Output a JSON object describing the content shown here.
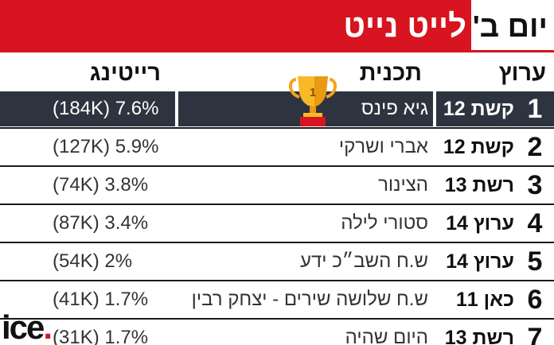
{
  "header": {
    "title": "לייט נייט",
    "day": "יום ב'"
  },
  "columns": {
    "channel": "ערוץ",
    "program": "תכנית",
    "rating": "רייטינג"
  },
  "rows": [
    {
      "rank": "1",
      "channel": "קשת 12",
      "program": "גיא פינס",
      "rating": "(184K) 7.6%"
    },
    {
      "rank": "2",
      "channel": "קשת 12",
      "program": "אברי ושרקי",
      "rating": "(127K) 5.9%"
    },
    {
      "rank": "3",
      "channel": "רשת 13",
      "program": "הצינור",
      "rating": "(74K) 3.8%"
    },
    {
      "rank": "4",
      "channel": "ערוץ 14",
      "program": "סטורי לילה",
      "rating": "(87K) 3.4%"
    },
    {
      "rank": "5",
      "channel": "ערוץ 14",
      "program": "ש.ח השב״כ ידע",
      "rating": "(54K) 2%"
    },
    {
      "rank": "6",
      "channel": "כאן 11",
      "program": "ש.ח שלושה שירים - יצחק רבין",
      "rating": "(41K) 1.7%"
    },
    {
      "rank": "7",
      "channel": "רשת 13",
      "program": "היום שהיה",
      "rating": "(31K) 1.7%"
    }
  ],
  "trophy": {
    "number": "1",
    "icon": "trophy-icon"
  },
  "logo": {
    "text": "ice",
    "dot": "."
  },
  "colors": {
    "accent": "#d7141f",
    "highlight_row": "#2e3340"
  }
}
